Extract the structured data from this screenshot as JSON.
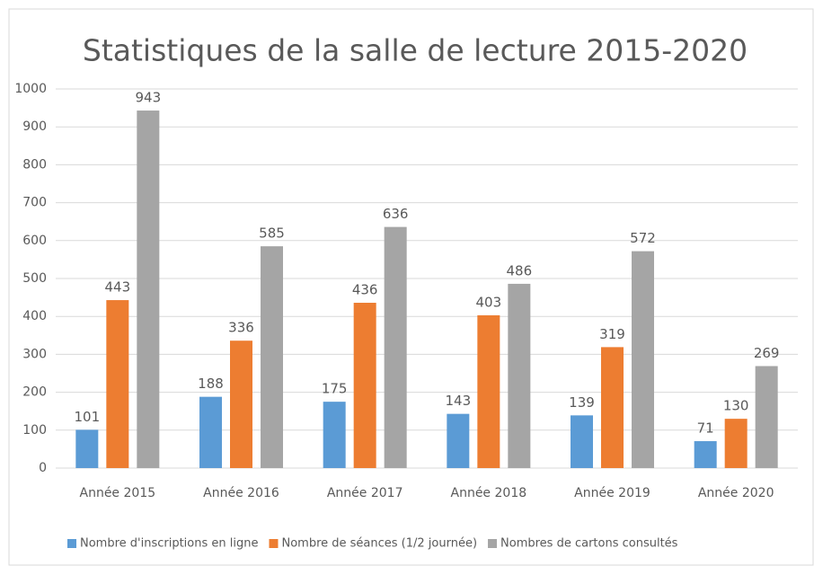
{
  "chart_data": {
    "type": "bar",
    "title": "Statistiques de la salle de lecture 2015-2020",
    "categories": [
      "Année 2015",
      "Année 2016",
      "Année 2017",
      "Année 2018",
      "Année 2019",
      "Année 2020"
    ],
    "series": [
      {
        "name": "Nombre d'inscriptions en ligne",
        "color": "#5b9bd5",
        "values": [
          101,
          188,
          175,
          143,
          139,
          71
        ]
      },
      {
        "name": "Nombre de séances (1/2 journée)",
        "color": "#ed7d31",
        "values": [
          443,
          336,
          436,
          403,
          319,
          130
        ]
      },
      {
        "name": "Nombres de cartons consultés",
        "color": "#a5a5a5",
        "values": [
          943,
          585,
          636,
          486,
          572,
          269
        ]
      }
    ],
    "ylim": [
      0,
      1000
    ],
    "yticks": [
      0,
      100,
      200,
      300,
      400,
      500,
      600,
      700,
      800,
      900,
      1000
    ],
    "grid": true,
    "legend": "bottom"
  }
}
